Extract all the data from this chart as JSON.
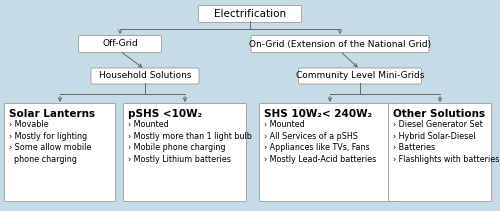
{
  "background_color": "#c5dce6",
  "box_color": "#ffffff",
  "box_edge_color": "#999999",
  "arrow_color": "#666666",
  "title_font_size": 7.5,
  "label_font_size": 6.5,
  "small_font_size": 5.8,
  "title": "Electrification",
  "level1": [
    "Off-Grid",
    "On-Grid (Extension of the National Grid)"
  ],
  "level2": [
    "Household Solutions",
    "Community Level Mini-Grids"
  ],
  "level3_titles": [
    "Solar Lanterns",
    "pSHS <10W₂",
    "SHS 10W₂< 240W₂",
    "Other Solutions"
  ],
  "level3_bullets": [
    [
      "› Movable",
      "› Mostly for lighting",
      "› Some allow mobile\n  phone charging"
    ],
    [
      "› Mounted",
      "› Mostly more than 1 light bulb",
      "› Mobile phone charging",
      "› Mostly Lithium batteries"
    ],
    [
      "› Mounted",
      "› All Services of a pSHS",
      "› Appliances like TVs, Fans",
      "› Mostly Lead-Acid batteries"
    ],
    [
      "› Diesel Generator Set",
      "› Hybrid Solar-Diesel",
      "› Batteries",
      "› Flashlights with batteries"
    ]
  ],
  "figsize": [
    5.0,
    2.11
  ],
  "dpi": 100
}
